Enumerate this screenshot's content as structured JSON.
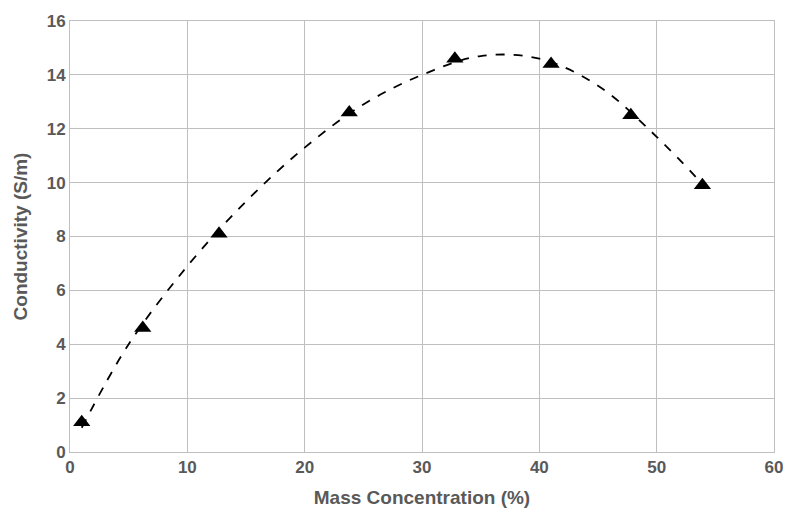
{
  "chart_data": {
    "type": "scatter",
    "x_label": "Mass Concentration (%)",
    "y_label": "Conductivity (S/m)",
    "series": [
      {
        "type": "scatter",
        "color": "#000000",
        "marker": "triangle-up",
        "x": [
          1,
          6.2,
          12.7,
          23.8,
          32.8,
          41,
          47.8,
          53.9
        ],
        "values": [
          1.1,
          4.6,
          8.1,
          12.6,
          14.6,
          14.4,
          12.5,
          9.9
        ]
      },
      {
        "type": "line",
        "color": "#000000",
        "line_style": "dash",
        "x": [
          1,
          5,
          10,
          15,
          20,
          25,
          30,
          35,
          40,
          45,
          50,
          54
        ],
        "values": [
          0.9,
          4.0,
          6.9,
          9.3,
          11.3,
          12.9,
          14.0,
          14.7,
          14.6,
          13.6,
          11.7,
          9.9
        ]
      }
    ],
    "xlim": [
      0,
      60
    ],
    "xticks": [
      0,
      10,
      20,
      30,
      40,
      50,
      60
    ],
    "ylim": [
      0,
      16
    ],
    "yticks": [
      0,
      2,
      4,
      6,
      8,
      10,
      12,
      14,
      16
    ],
    "grid": true
  }
}
